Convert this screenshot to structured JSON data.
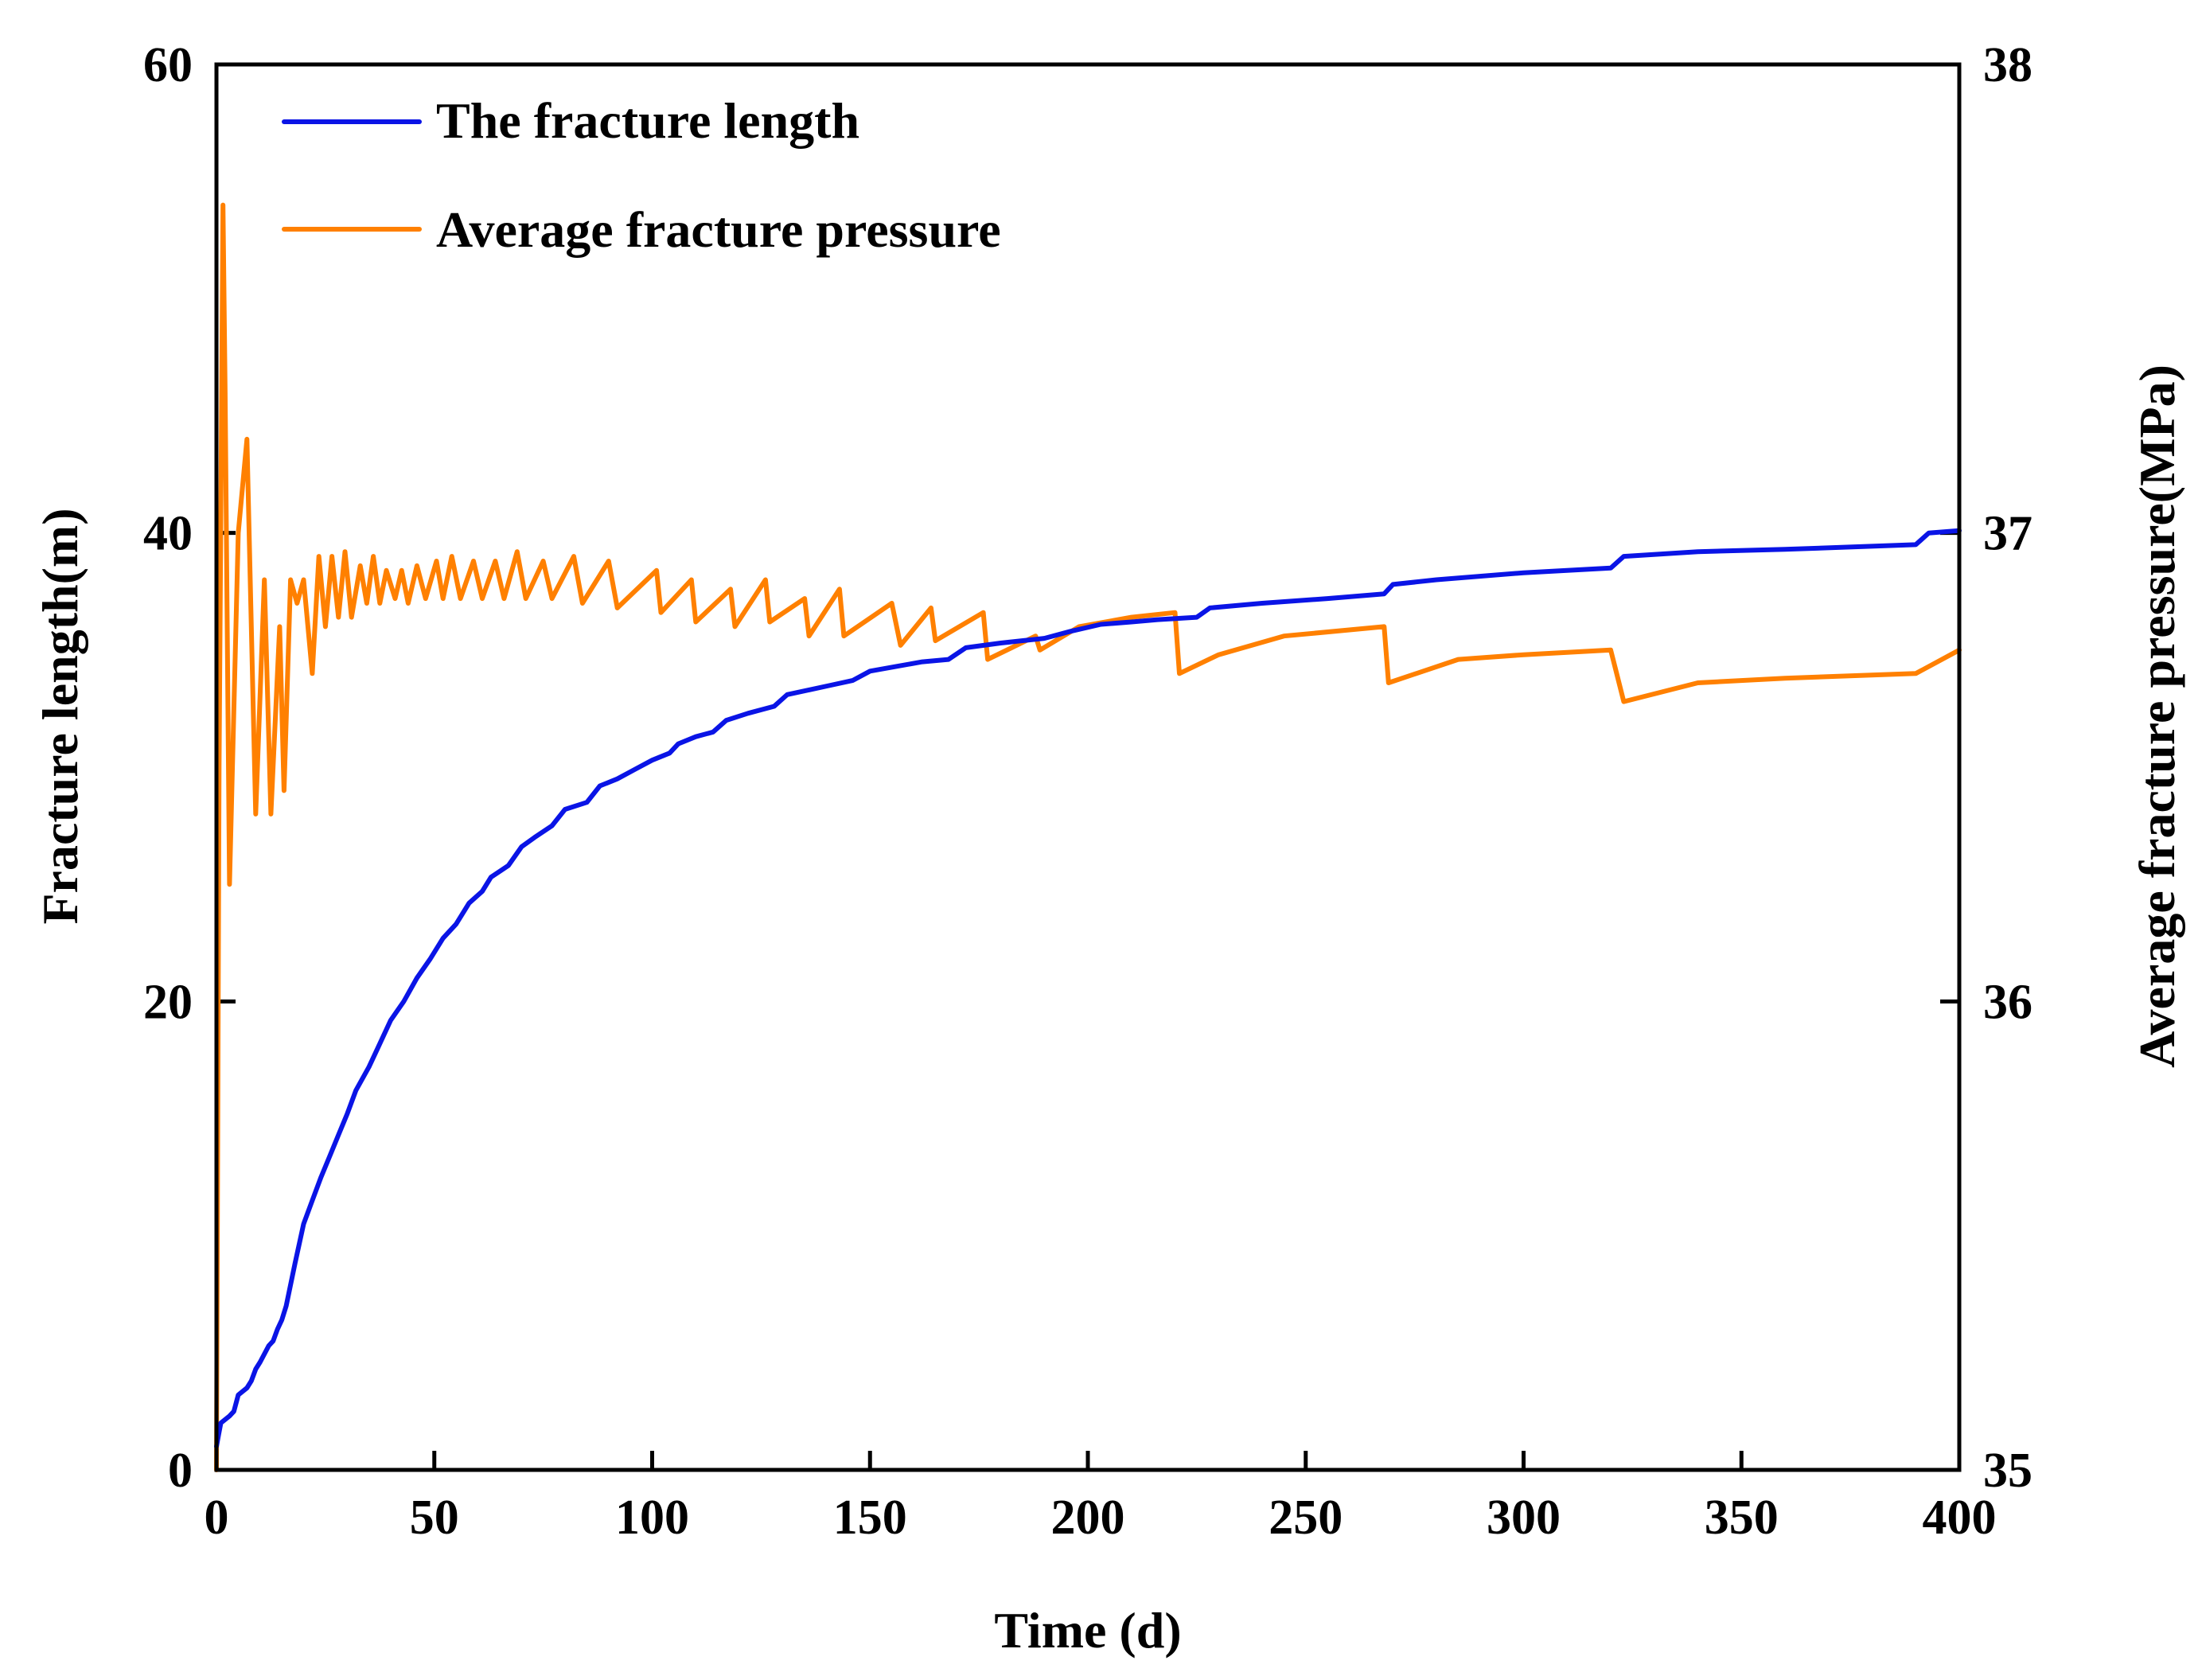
{
  "chart_data": {
    "type": "line",
    "title": "",
    "xlabel": "Time (d)",
    "ylabel_left": "Fracture length(m)",
    "ylabel_right": "Average fracture pressure(MPa)",
    "xlim": [
      0,
      400
    ],
    "ylim_left": [
      0,
      60
    ],
    "ylim_right": [
      35,
      38
    ],
    "x_ticks": [
      0,
      50,
      100,
      150,
      200,
      250,
      300,
      350,
      400
    ],
    "y_ticks_left": [
      0,
      20,
      40,
      60
    ],
    "y_ticks_right": [
      35,
      36,
      37,
      38
    ],
    "legend_position": "top-left",
    "grid": false,
    "series": [
      {
        "name": "The fracture length",
        "axis": "left",
        "color": "#0A14E6",
        "points": [
          [
            0,
            1
          ],
          [
            0.5,
            1.5
          ],
          [
            1,
            2
          ],
          [
            3,
            2.3
          ],
          [
            4,
            2.5
          ],
          [
            5,
            3.2
          ],
          [
            7,
            3.5
          ],
          [
            8,
            3.8
          ],
          [
            9,
            4.3
          ],
          [
            10,
            4.6
          ],
          [
            12,
            5.3
          ],
          [
            13,
            5.5
          ],
          [
            14,
            6.0
          ],
          [
            15,
            6.4
          ],
          [
            16,
            7.0
          ],
          [
            18,
            8.8
          ],
          [
            20,
            10.5
          ],
          [
            22,
            11.5
          ],
          [
            24,
            12.5
          ],
          [
            26,
            13.4
          ],
          [
            28,
            14.3
          ],
          [
            30,
            15.2
          ],
          [
            32,
            16.2
          ],
          [
            35,
            17.2
          ],
          [
            37,
            18.0
          ],
          [
            40,
            19.2
          ],
          [
            43,
            20.0
          ],
          [
            46,
            21.0
          ],
          [
            49,
            21.8
          ],
          [
            52,
            22.7
          ],
          [
            55,
            23.3
          ],
          [
            58,
            24.2
          ],
          [
            61,
            24.7
          ],
          [
            63,
            25.3
          ],
          [
            67,
            25.8
          ],
          [
            70,
            26.6
          ],
          [
            73,
            27.0
          ],
          [
            77,
            27.5
          ],
          [
            80,
            28.2
          ],
          [
            85,
            28.5
          ],
          [
            88,
            29.2
          ],
          [
            92,
            29.5
          ],
          [
            96,
            29.9
          ],
          [
            100,
            30.3
          ],
          [
            104,
            30.6
          ],
          [
            106,
            31.0
          ],
          [
            110,
            31.3
          ],
          [
            114,
            31.5
          ],
          [
            117,
            32.0
          ],
          [
            122,
            32.3
          ],
          [
            128,
            32.6
          ],
          [
            131,
            33.1
          ],
          [
            136,
            33.3
          ],
          [
            141,
            33.5
          ],
          [
            146,
            33.7
          ],
          [
            150,
            34.1
          ],
          [
            156,
            34.3
          ],
          [
            162,
            34.5
          ],
          [
            168,
            34.6
          ],
          [
            172,
            35.1
          ],
          [
            180,
            35.3
          ],
          [
            190,
            35.5
          ],
          [
            196,
            35.8
          ],
          [
            203,
            36.1
          ],
          [
            210,
            36.2
          ],
          [
            216,
            36.3
          ],
          [
            225,
            36.4
          ],
          [
            228,
            36.8
          ],
          [
            240,
            37.0
          ],
          [
            255,
            37.2
          ],
          [
            268,
            37.4
          ],
          [
            270,
            37.8
          ],
          [
            280,
            38.0
          ],
          [
            300,
            38.3
          ],
          [
            320,
            38.5
          ],
          [
            323,
            39.0
          ],
          [
            340,
            39.2
          ],
          [
            360,
            39.3
          ],
          [
            390,
            39.5
          ],
          [
            393,
            40.0
          ],
          [
            400,
            40.1
          ]
        ]
      },
      {
        "name": "Average fracture pressure",
        "axis": "right",
        "color": "#FF8000",
        "points": [
          [
            0,
            35.0
          ],
          [
            0.6,
            36.5
          ],
          [
            1.5,
            37.7
          ],
          [
            2,
            37.3
          ],
          [
            3,
            36.25
          ],
          [
            5,
            37.0
          ],
          [
            7,
            37.2
          ],
          [
            9,
            36.4
          ],
          [
            11,
            36.9
          ],
          [
            12.5,
            36.4
          ],
          [
            14.5,
            36.8
          ],
          [
            15.5,
            36.45
          ],
          [
            17,
            36.9
          ],
          [
            18.5,
            36.85
          ],
          [
            20,
            36.9
          ],
          [
            22,
            36.7
          ],
          [
            23.5,
            36.95
          ],
          [
            25,
            36.8
          ],
          [
            26.5,
            36.95
          ],
          [
            28,
            36.82
          ],
          [
            29.5,
            36.96
          ],
          [
            31,
            36.82
          ],
          [
            33,
            36.93
          ],
          [
            34.5,
            36.85
          ],
          [
            36,
            36.95
          ],
          [
            37.5,
            36.85
          ],
          [
            39,
            36.92
          ],
          [
            41,
            36.86
          ],
          [
            42.5,
            36.92
          ],
          [
            44,
            36.85
          ],
          [
            46,
            36.93
          ],
          [
            48,
            36.86
          ],
          [
            50.5,
            36.94
          ],
          [
            52,
            36.86
          ],
          [
            54,
            36.95
          ],
          [
            56,
            36.86
          ],
          [
            59,
            36.94
          ],
          [
            61,
            36.86
          ],
          [
            64,
            36.94
          ],
          [
            66,
            36.86
          ],
          [
            69,
            36.96
          ],
          [
            71,
            36.86
          ],
          [
            75,
            36.94
          ],
          [
            77,
            36.86
          ],
          [
            82,
            36.95
          ],
          [
            84,
            36.85
          ],
          [
            90,
            36.94
          ],
          [
            92,
            36.84
          ],
          [
            101,
            36.92
          ],
          [
            102,
            36.83
          ],
          [
            109,
            36.9
          ],
          [
            110,
            36.81
          ],
          [
            118,
            36.88
          ],
          [
            119,
            36.8
          ],
          [
            126,
            36.9
          ],
          [
            127,
            36.81
          ],
          [
            135,
            36.86
          ],
          [
            136,
            36.78
          ],
          [
            143,
            36.88
          ],
          [
            144,
            36.78
          ],
          [
            155,
            36.85
          ],
          [
            157,
            36.76
          ],
          [
            164,
            36.84
          ],
          [
            165,
            36.77
          ],
          [
            176,
            36.83
          ],
          [
            177,
            36.73
          ],
          [
            188,
            36.78
          ],
          [
            189,
            36.75
          ],
          [
            198,
            36.8
          ],
          [
            210,
            36.82
          ],
          [
            220,
            36.83
          ],
          [
            221,
            36.7
          ],
          [
            230,
            36.74
          ],
          [
            245,
            36.78
          ],
          [
            268,
            36.8
          ],
          [
            269,
            36.68
          ],
          [
            285,
            36.73
          ],
          [
            300,
            36.74
          ],
          [
            320,
            36.75
          ],
          [
            323,
            36.64
          ],
          [
            340,
            36.68
          ],
          [
            360,
            36.69
          ],
          [
            390,
            36.7
          ],
          [
            400,
            36.75
          ]
        ]
      }
    ]
  }
}
